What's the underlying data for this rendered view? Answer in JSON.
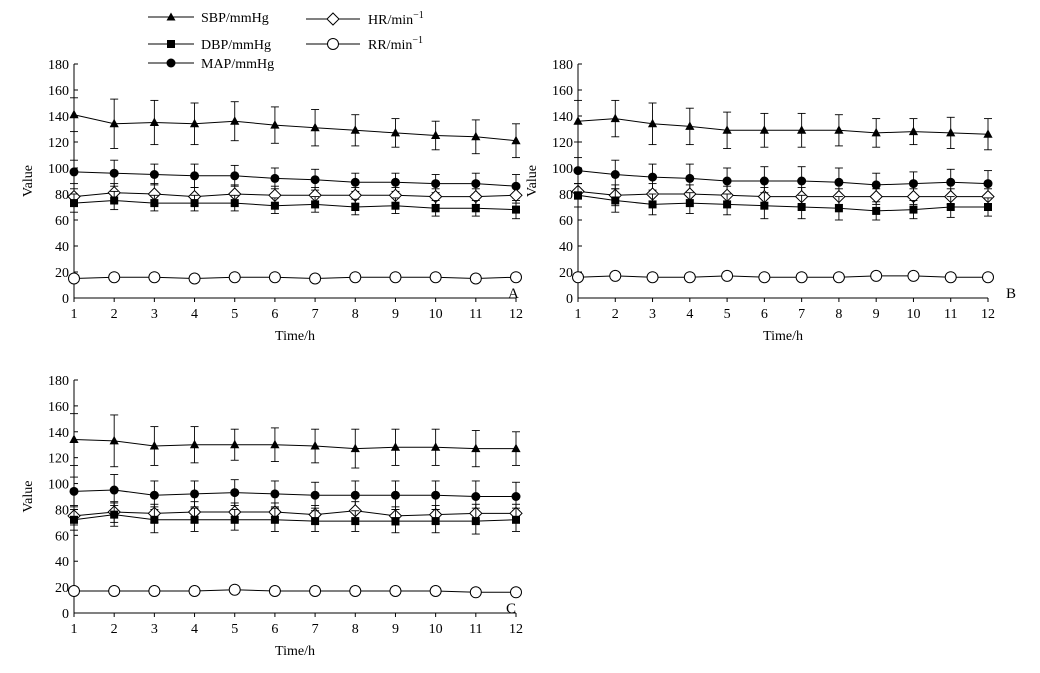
{
  "legend": {
    "entries": [
      {
        "key": "SBP",
        "label": "SBP/mmHg",
        "marker": "triangle-filled"
      },
      {
        "key": "DBP",
        "label": "DBP/mmHg",
        "marker": "square-filled"
      },
      {
        "key": "MAP",
        "label": "MAP/mmHg",
        "marker": "circle-filled"
      },
      {
        "key": "HR",
        "label": "HR/min",
        "sup": "−1",
        "marker": "diamond-open"
      },
      {
        "key": "RR",
        "label": "RR/min",
        "sup": "−1",
        "marker": "circle-open"
      }
    ]
  },
  "chart_data": [
    {
      "type": "line",
      "panel": "A",
      "xlabel": "Time/h",
      "ylabel": "Value",
      "x": [
        1,
        2,
        3,
        4,
        5,
        6,
        7,
        8,
        9,
        10,
        11,
        12
      ],
      "xticks": [
        "1",
        "2",
        "3",
        "4",
        "5",
        "6",
        "7",
        "8",
        "9",
        "10",
        "11",
        "12"
      ],
      "yticks": [
        "0",
        "20",
        "40",
        "60",
        "80",
        "100",
        "120",
        "140",
        "160",
        "180"
      ],
      "ylim": [
        0,
        180
      ],
      "series": [
        {
          "key": "SBP",
          "values": [
            141,
            134,
            135,
            134,
            136,
            133,
            131,
            129,
            127,
            125,
            124,
            121
          ],
          "err": [
            13,
            19,
            17,
            16,
            15,
            14,
            14,
            12,
            11,
            11,
            13,
            13
          ]
        },
        {
          "key": "MAP",
          "values": [
            97,
            96,
            95,
            94,
            94,
            92,
            91,
            89,
            89,
            88,
            88,
            86
          ],
          "err": [
            9,
            10,
            8,
            9,
            8,
            8,
            8,
            7,
            7,
            7,
            8,
            9
          ]
        },
        {
          "key": "HR",
          "values": [
            78,
            81,
            80,
            78,
            80,
            79,
            79,
            79,
            79,
            78,
            78,
            79
          ],
          "err": [
            6,
            7,
            8,
            7,
            7,
            7,
            6,
            6,
            6,
            6,
            6,
            6
          ]
        },
        {
          "key": "DBP",
          "values": [
            73,
            75,
            73,
            73,
            73,
            71,
            72,
            70,
            71,
            69,
            69,
            68
          ],
          "err": [
            7,
            7,
            6,
            6,
            6,
            6,
            6,
            6,
            6,
            6,
            6,
            7
          ]
        },
        {
          "key": "RR",
          "values": [
            15,
            16,
            16,
            15,
            16,
            16,
            15,
            16,
            16,
            16,
            15,
            16
          ],
          "err": [
            2,
            2,
            2,
            2,
            2,
            2,
            2,
            2,
            2,
            2,
            2,
            2
          ]
        }
      ]
    },
    {
      "type": "line",
      "panel": "B",
      "xlabel": "Time/h",
      "ylabel": "Value",
      "x": [
        1,
        2,
        3,
        4,
        5,
        6,
        7,
        8,
        9,
        10,
        11,
        12
      ],
      "xticks": [
        "1",
        "2",
        "3",
        "4",
        "5",
        "6",
        "7",
        "8",
        "9",
        "10",
        "11",
        "12"
      ],
      "yticks": [
        "0",
        "20",
        "40",
        "60",
        "80",
        "100",
        "120",
        "140",
        "160",
        "180"
      ],
      "ylim": [
        0,
        180
      ],
      "series": [
        {
          "key": "SBP",
          "values": [
            136,
            138,
            134,
            132,
            129,
            129,
            129,
            129,
            127,
            128,
            127,
            126
          ],
          "err": [
            16,
            14,
            16,
            14,
            14,
            13,
            13,
            12,
            11,
            10,
            12,
            12
          ]
        },
        {
          "key": "MAP",
          "values": [
            98,
            95,
            93,
            92,
            90,
            90,
            90,
            89,
            87,
            88,
            89,
            88
          ],
          "err": [
            10,
            11,
            10,
            11,
            10,
            11,
            11,
            11,
            9,
            9,
            10,
            10
          ]
        },
        {
          "key": "HR",
          "values": [
            82,
            79,
            80,
            80,
            79,
            78,
            78,
            78,
            78,
            78,
            78,
            78
          ],
          "err": [
            6,
            8,
            8,
            7,
            7,
            7,
            7,
            6,
            6,
            6,
            6,
            6
          ]
        },
        {
          "key": "DBP",
          "values": [
            79,
            75,
            72,
            73,
            72,
            71,
            70,
            69,
            67,
            68,
            70,
            70
          ],
          "err": [
            9,
            9,
            8,
            8,
            8,
            10,
            9,
            9,
            7,
            7,
            8,
            7
          ]
        },
        {
          "key": "RR",
          "values": [
            16,
            17,
            16,
            16,
            17,
            16,
            16,
            16,
            17,
            17,
            16,
            16
          ],
          "err": [
            2,
            2,
            2,
            2,
            2,
            2,
            2,
            2,
            2,
            2,
            2,
            2
          ]
        }
      ]
    },
    {
      "type": "line",
      "panel": "C",
      "xlabel": "Time/h",
      "ylabel": "Value",
      "x": [
        1,
        2,
        3,
        4,
        5,
        6,
        7,
        8,
        9,
        10,
        11,
        12
      ],
      "xticks": [
        "1",
        "2",
        "3",
        "4",
        "5",
        "6",
        "7",
        "8",
        "9",
        "10",
        "11",
        "12"
      ],
      "yticks": [
        "0",
        "20",
        "40",
        "60",
        "80",
        "100",
        "120",
        "140",
        "160",
        "180"
      ],
      "ylim": [
        0,
        180
      ],
      "series": [
        {
          "key": "SBP",
          "values": [
            134,
            133,
            129,
            130,
            130,
            130,
            129,
            127,
            128,
            128,
            127,
            127
          ],
          "err": [
            20,
            20,
            15,
            14,
            12,
            13,
            13,
            15,
            14,
            14,
            14,
            13
          ]
        },
        {
          "key": "MAP",
          "values": [
            94,
            95,
            91,
            92,
            93,
            92,
            91,
            91,
            91,
            91,
            90,
            90
          ],
          "err": [
            11,
            12,
            11,
            10,
            10,
            10,
            10,
            11,
            11,
            11,
            12,
            11
          ]
        },
        {
          "key": "HR",
          "values": [
            75,
            78,
            77,
            78,
            78,
            78,
            76,
            79,
            75,
            76,
            77,
            77
          ],
          "err": [
            7,
            8,
            7,
            8,
            7,
            7,
            7,
            7,
            7,
            7,
            7,
            7
          ]
        },
        {
          "key": "DBP",
          "values": [
            72,
            76,
            72,
            72,
            72,
            72,
            71,
            71,
            71,
            71,
            71,
            72
          ],
          "err": [
            8,
            9,
            10,
            9,
            8,
            9,
            8,
            8,
            9,
            9,
            10,
            9
          ]
        },
        {
          "key": "RR",
          "values": [
            17,
            17,
            17,
            17,
            18,
            17,
            17,
            17,
            17,
            17,
            16,
            16
          ],
          "err": [
            2,
            2,
            2,
            2,
            2,
            2,
            2,
            2,
            2,
            2,
            2,
            2
          ]
        }
      ]
    }
  ]
}
